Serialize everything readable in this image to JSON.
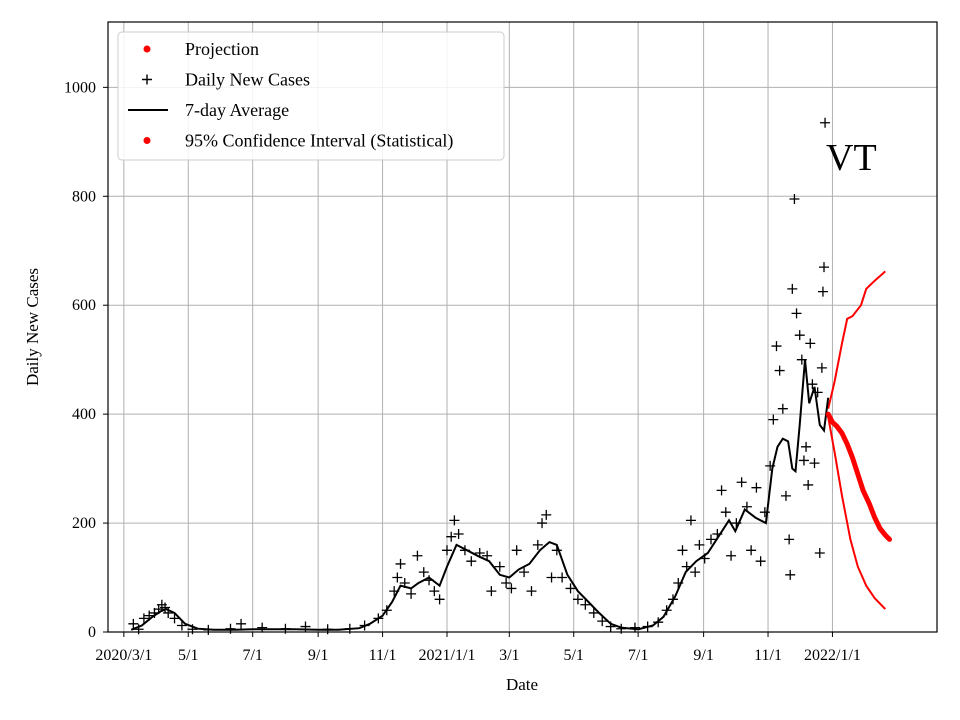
{
  "chart_data": {
    "type": "line",
    "title": "",
    "annotation": "VT",
    "xlabel": "Date",
    "ylabel": "Daily New Cases",
    "xlim": [
      "2020-02-15",
      "2022-04-10"
    ],
    "ylim": [
      0,
      1120
    ],
    "grid": true,
    "legend_position": "top-left",
    "x_ticks": [
      {
        "date": "2020-03-01",
        "label": "2020/3/1"
      },
      {
        "date": "2020-05-01",
        "label": "5/1"
      },
      {
        "date": "2020-07-01",
        "label": "7/1"
      },
      {
        "date": "2020-09-01",
        "label": "9/1"
      },
      {
        "date": "2020-11-01",
        "label": "11/1"
      },
      {
        "date": "2021-01-01",
        "label": "2021/1/1"
      },
      {
        "date": "2021-03-01",
        "label": "3/1"
      },
      {
        "date": "2021-05-01",
        "label": "5/1"
      },
      {
        "date": "2021-07-01",
        "label": "7/1"
      },
      {
        "date": "2021-09-01",
        "label": "9/1"
      },
      {
        "date": "2021-11-01",
        "label": "11/1"
      },
      {
        "date": "2022-01-01",
        "label": "2022/1/1"
      }
    ],
    "y_ticks": [
      0,
      200,
      400,
      600,
      800,
      1000
    ],
    "legend": [
      {
        "label": "Projection",
        "marker": "dot",
        "color": "#ff0000"
      },
      {
        "label": "Daily New Cases",
        "marker": "plus",
        "color": "#000000"
      },
      {
        "label": "7-day Average",
        "marker": "line",
        "color": "#000000"
      },
      {
        "label": "95% Confidence Interval (Statistical)",
        "marker": "dot",
        "color": "#ff0000"
      }
    ],
    "series": [
      {
        "name": "7-day Average",
        "style": "line",
        "color": "#000000",
        "points": [
          [
            "2020-03-08",
            4
          ],
          [
            "2020-03-18",
            12
          ],
          [
            "2020-03-28",
            28
          ],
          [
            "2020-04-05",
            38
          ],
          [
            "2020-04-10",
            42
          ],
          [
            "2020-04-18",
            35
          ],
          [
            "2020-04-28",
            15
          ],
          [
            "2020-05-10",
            6
          ],
          [
            "2020-05-25",
            4
          ],
          [
            "2020-06-15",
            4
          ],
          [
            "2020-07-01",
            5
          ],
          [
            "2020-07-20",
            5
          ],
          [
            "2020-08-10",
            5
          ],
          [
            "2020-09-01",
            4
          ],
          [
            "2020-09-20",
            4
          ],
          [
            "2020-10-10",
            7
          ],
          [
            "2020-10-20",
            15
          ],
          [
            "2020-11-01",
            30
          ],
          [
            "2020-11-10",
            55
          ],
          [
            "2020-11-18",
            85
          ],
          [
            "2020-11-28",
            80
          ],
          [
            "2020-12-05",
            90
          ],
          [
            "2020-12-15",
            100
          ],
          [
            "2020-12-25",
            85
          ],
          [
            "2021-01-01",
            120
          ],
          [
            "2021-01-10",
            160
          ],
          [
            "2021-01-20",
            150
          ],
          [
            "2021-01-30",
            140
          ],
          [
            "2021-02-10",
            130
          ],
          [
            "2021-02-20",
            105
          ],
          [
            "2021-03-01",
            100
          ],
          [
            "2021-03-10",
            115
          ],
          [
            "2021-03-20",
            125
          ],
          [
            "2021-03-30",
            150
          ],
          [
            "2021-04-08",
            165
          ],
          [
            "2021-04-15",
            160
          ],
          [
            "2021-04-25",
            105
          ],
          [
            "2021-05-05",
            75
          ],
          [
            "2021-05-15",
            55
          ],
          [
            "2021-05-25",
            35
          ],
          [
            "2021-06-05",
            15
          ],
          [
            "2021-06-15",
            8
          ],
          [
            "2021-07-01",
            5
          ],
          [
            "2021-07-15",
            12
          ],
          [
            "2021-07-25",
            28
          ],
          [
            "2021-08-05",
            65
          ],
          [
            "2021-08-15",
            110
          ],
          [
            "2021-08-25",
            130
          ],
          [
            "2021-09-05",
            145
          ],
          [
            "2021-09-15",
            175
          ],
          [
            "2021-09-25",
            205
          ],
          [
            "2021-10-01",
            185
          ],
          [
            "2021-10-10",
            225
          ],
          [
            "2021-10-20",
            210
          ],
          [
            "2021-10-30",
            200
          ],
          [
            "2021-11-05",
            300
          ],
          [
            "2021-11-10",
            340
          ],
          [
            "2021-11-15",
            355
          ],
          [
            "2021-11-20",
            350
          ],
          [
            "2021-11-24",
            300
          ],
          [
            "2021-11-27",
            295
          ],
          [
            "2021-12-01",
            380
          ],
          [
            "2021-12-06",
            500
          ],
          [
            "2021-12-10",
            420
          ],
          [
            "2021-12-15",
            450
          ],
          [
            "2021-12-20",
            380
          ],
          [
            "2021-12-24",
            370
          ],
          [
            "2021-12-28",
            430
          ]
        ]
      },
      {
        "name": "Daily New Cases",
        "style": "plus",
        "color": "#000000",
        "points": [
          [
            "2020-03-10",
            15
          ],
          [
            "2020-03-15",
            5
          ],
          [
            "2020-03-20",
            25
          ],
          [
            "2020-03-25",
            30
          ],
          [
            "2020-03-30",
            35
          ],
          [
            "2020-04-03",
            42
          ],
          [
            "2020-04-06",
            50
          ],
          [
            "2020-04-09",
            45
          ],
          [
            "2020-04-12",
            35
          ],
          [
            "2020-04-18",
            25
          ],
          [
            "2020-04-25",
            12
          ],
          [
            "2020-05-05",
            5
          ],
          [
            "2020-05-20",
            4
          ],
          [
            "2020-06-10",
            6
          ],
          [
            "2020-06-20",
            15
          ],
          [
            "2020-07-10",
            8
          ],
          [
            "2020-08-01",
            6
          ],
          [
            "2020-08-20",
            10
          ],
          [
            "2020-09-10",
            5
          ],
          [
            "2020-10-01",
            6
          ],
          [
            "2020-10-15",
            12
          ],
          [
            "2020-10-28",
            25
          ],
          [
            "2020-11-05",
            40
          ],
          [
            "2020-11-12",
            75
          ],
          [
            "2020-11-15",
            100
          ],
          [
            "2020-11-18",
            125
          ],
          [
            "2020-11-22",
            90
          ],
          [
            "2020-11-28",
            70
          ],
          [
            "2020-12-04",
            140
          ],
          [
            "2020-12-10",
            110
          ],
          [
            "2020-12-15",
            95
          ],
          [
            "2020-12-20",
            75
          ],
          [
            "2020-12-25",
            60
          ],
          [
            "2021-01-01",
            150
          ],
          [
            "2021-01-05",
            175
          ],
          [
            "2021-01-08",
            205
          ],
          [
            "2021-01-12",
            180
          ],
          [
            "2021-01-18",
            150
          ],
          [
            "2021-01-24",
            130
          ],
          [
            "2021-02-01",
            145
          ],
          [
            "2021-02-08",
            140
          ],
          [
            "2021-02-12",
            75
          ],
          [
            "2021-02-20",
            120
          ],
          [
            "2021-02-26",
            90
          ],
          [
            "2021-03-03",
            80
          ],
          [
            "2021-03-08",
            150
          ],
          [
            "2021-03-15",
            110
          ],
          [
            "2021-03-22",
            75
          ],
          [
            "2021-03-28",
            160
          ],
          [
            "2021-04-01",
            200
          ],
          [
            "2021-04-05",
            215
          ],
          [
            "2021-04-10",
            100
          ],
          [
            "2021-04-15",
            150
          ],
          [
            "2021-04-20",
            100
          ],
          [
            "2021-04-28",
            80
          ],
          [
            "2021-05-05",
            60
          ],
          [
            "2021-05-12",
            50
          ],
          [
            "2021-05-20",
            35
          ],
          [
            "2021-05-28",
            20
          ],
          [
            "2021-06-05",
            10
          ],
          [
            "2021-06-15",
            6
          ],
          [
            "2021-06-28",
            8
          ],
          [
            "2021-07-10",
            10
          ],
          [
            "2021-07-20",
            18
          ],
          [
            "2021-07-28",
            40
          ],
          [
            "2021-08-03",
            60
          ],
          [
            "2021-08-08",
            90
          ],
          [
            "2021-08-12",
            150
          ],
          [
            "2021-08-16",
            120
          ],
          [
            "2021-08-20",
            205
          ],
          [
            "2021-08-24",
            110
          ],
          [
            "2021-08-28",
            160
          ],
          [
            "2021-09-02",
            135
          ],
          [
            "2021-09-08",
            170
          ],
          [
            "2021-09-14",
            180
          ],
          [
            "2021-09-18",
            260
          ],
          [
            "2021-09-22",
            220
          ],
          [
            "2021-09-27",
            140
          ],
          [
            "2021-10-02",
            200
          ],
          [
            "2021-10-07",
            275
          ],
          [
            "2021-10-12",
            230
          ],
          [
            "2021-10-16",
            150
          ],
          [
            "2021-10-21",
            265
          ],
          [
            "2021-10-25",
            130
          ],
          [
            "2021-10-29",
            220
          ],
          [
            "2021-11-03",
            305
          ],
          [
            "2021-11-06",
            390
          ],
          [
            "2021-11-09",
            525
          ],
          [
            "2021-11-12",
            480
          ],
          [
            "2021-11-15",
            410
          ],
          [
            "2021-11-18",
            250
          ],
          [
            "2021-11-21",
            170
          ],
          [
            "2021-11-22",
            105
          ],
          [
            "2021-11-24",
            630
          ],
          [
            "2021-11-26",
            795
          ],
          [
            "2021-11-28",
            585
          ],
          [
            "2021-12-01",
            545
          ],
          [
            "2021-12-03",
            500
          ],
          [
            "2021-12-05",
            315
          ],
          [
            "2021-12-07",
            340
          ],
          [
            "2021-12-09",
            270
          ],
          [
            "2021-12-11",
            530
          ],
          [
            "2021-12-13",
            455
          ],
          [
            "2021-12-15",
            310
          ],
          [
            "2021-12-18",
            440
          ],
          [
            "2021-12-20",
            145
          ],
          [
            "2021-12-22",
            485
          ],
          [
            "2021-12-23",
            625
          ],
          [
            "2021-12-24",
            670
          ],
          [
            "2021-12-25",
            935
          ]
        ]
      },
      {
        "name": "Projection",
        "style": "dots",
        "color": "#ff0000",
        "points": [
          [
            "2021-12-28",
            400
          ],
          [
            "2022-01-01",
            385
          ],
          [
            "2022-01-05",
            378
          ],
          [
            "2022-01-10",
            365
          ],
          [
            "2022-01-15",
            345
          ],
          [
            "2022-01-20",
            320
          ],
          [
            "2022-01-25",
            290
          ],
          [
            "2022-01-30",
            260
          ],
          [
            "2022-02-05",
            235
          ],
          [
            "2022-02-10",
            210
          ],
          [
            "2022-02-15",
            190
          ],
          [
            "2022-02-20",
            178
          ],
          [
            "2022-02-24",
            170
          ]
        ]
      },
      {
        "name": "95% Confidence Interval (Statistical)",
        "style": "line",
        "color": "#ff0000",
        "upper": [
          [
            "2021-12-28",
            410
          ],
          [
            "2022-01-03",
            460
          ],
          [
            "2022-01-10",
            530
          ],
          [
            "2022-01-15",
            575
          ],
          [
            "2022-01-20",
            580
          ],
          [
            "2022-01-28",
            600
          ],
          [
            "2022-02-02",
            630
          ],
          [
            "2022-02-10",
            645
          ],
          [
            "2022-02-20",
            662
          ]
        ],
        "lower": [
          [
            "2021-12-28",
            395
          ],
          [
            "2022-01-03",
            330
          ],
          [
            "2022-01-10",
            250
          ],
          [
            "2022-01-18",
            170
          ],
          [
            "2022-01-25",
            120
          ],
          [
            "2022-02-02",
            85
          ],
          [
            "2022-02-10",
            62
          ],
          [
            "2022-02-20",
            42
          ]
        ]
      }
    ]
  }
}
